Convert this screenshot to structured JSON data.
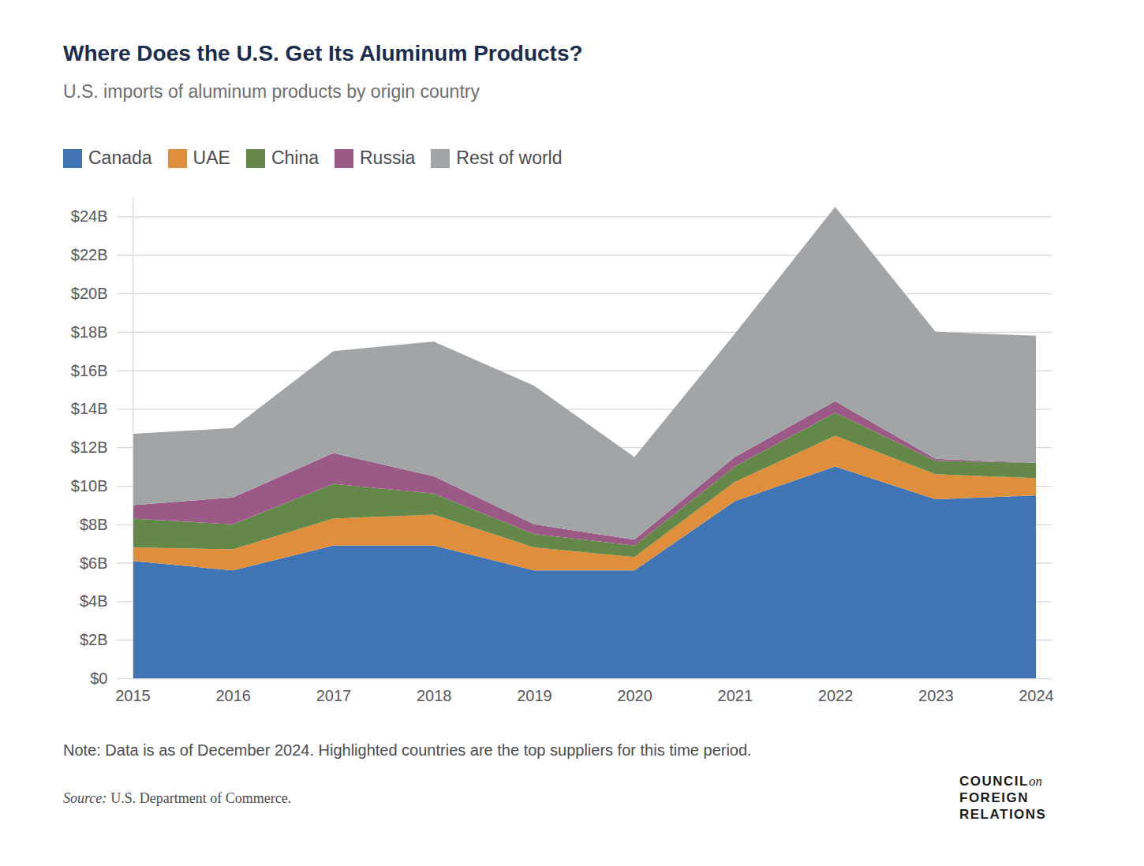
{
  "chart_data": {
    "type": "area",
    "title": "Where Does the U.S. Get Its Aluminum Products?",
    "subtitle": "U.S. imports of aluminum products by origin country",
    "note": "Note: Data is as of December 2024. Highlighted countries are the top suppliers for this time period.",
    "source_label": "Source:",
    "source": "U.S. Department of Commerce.",
    "logo": [
      "COUNCIL",
      "on",
      "FOREIGN",
      "RELATIONS"
    ],
    "stacked": true,
    "grid": true,
    "legend": "top",
    "x": [
      2015,
      2016,
      2017,
      2018,
      2019,
      2020,
      2021,
      2022,
      2023,
      2024
    ],
    "xlim": [
      2015,
      2024
    ],
    "xticks": [
      2015,
      2016,
      2017,
      2018,
      2019,
      2020,
      2021,
      2022,
      2023,
      2024
    ],
    "ylim": [
      0,
      25
    ],
    "yticks": [
      {
        "value": 0,
        "label": "$0"
      },
      {
        "value": 2,
        "label": "$2B"
      },
      {
        "value": 4,
        "label": "$4B"
      },
      {
        "value": 6,
        "label": "$6B"
      },
      {
        "value": 8,
        "label": "$8B"
      },
      {
        "value": 10,
        "label": "$10B"
      },
      {
        "value": 12,
        "label": "$12B"
      },
      {
        "value": 14,
        "label": "$14B"
      },
      {
        "value": 16,
        "label": "$16B"
      },
      {
        "value": 18,
        "label": "$18B"
      },
      {
        "value": 20,
        "label": "$20B"
      },
      {
        "value": 22,
        "label": "$22B"
      },
      {
        "value": 24,
        "label": "$24B"
      }
    ],
    "series": [
      {
        "name": "Canada",
        "color": "#3f74b5",
        "values": [
          6.1,
          5.6,
          6.9,
          6.9,
          5.6,
          5.6,
          9.2,
          11.0,
          9.3,
          9.5
        ]
      },
      {
        "name": "UAE",
        "color": "#df8f3b",
        "values": [
          0.7,
          1.1,
          1.4,
          1.6,
          1.2,
          0.7,
          1.0,
          1.6,
          1.3,
          0.9
        ]
      },
      {
        "name": "China",
        "color": "#64884a",
        "values": [
          1.5,
          1.3,
          1.8,
          1.1,
          0.7,
          0.6,
          0.8,
          1.2,
          0.7,
          0.8
        ]
      },
      {
        "name": "Russia",
        "color": "#9b5a85",
        "values": [
          0.7,
          1.4,
          1.6,
          0.9,
          0.5,
          0.3,
          0.5,
          0.6,
          0.1,
          0.0
        ]
      },
      {
        "name": "Rest of world",
        "color": "#a2a5a8",
        "values": [
          3.7,
          3.6,
          5.3,
          7.0,
          7.2,
          4.3,
          6.4,
          10.1,
          6.6,
          6.6
        ]
      }
    ]
  }
}
